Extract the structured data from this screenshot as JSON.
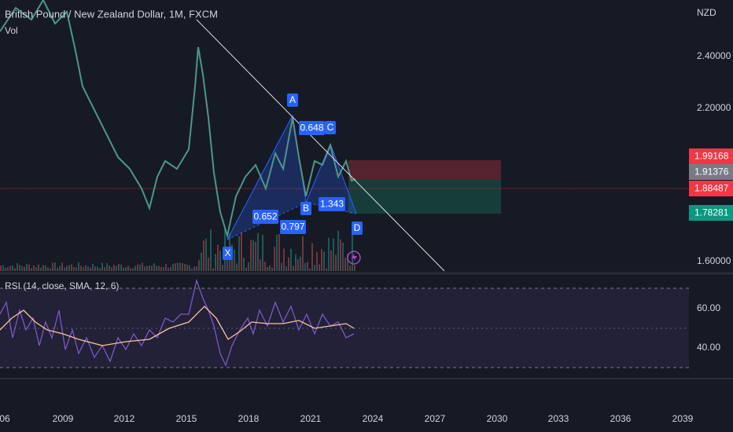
{
  "header": {
    "title": "British Pound / New Zealand Dollar, 1M, FXCM",
    "volume": "Vol"
  },
  "price_axis": {
    "currency": "NZD",
    "ticks": [
      "2.40000",
      "2.20000",
      "1.60000"
    ],
    "tags": {
      "upper": "1.99168",
      "current": "1.91376",
      "entry": "1.88487",
      "lower": "1.78281"
    }
  },
  "pattern": {
    "points": [
      "X",
      "A",
      "B",
      "C",
      "D"
    ],
    "ratios": [
      "0.652",
      "0.797",
      "0.648",
      "1.343"
    ]
  },
  "rsi": {
    "label": "RSI (14, close, SMA, 12, 6)",
    "ticks": [
      "60.00",
      "40.00"
    ]
  },
  "time_axis": [
    "06",
    "2009",
    "2012",
    "2015",
    "2018",
    "2021",
    "2024",
    "2027",
    "2030",
    "2033",
    "2036",
    "2039"
  ]
}
